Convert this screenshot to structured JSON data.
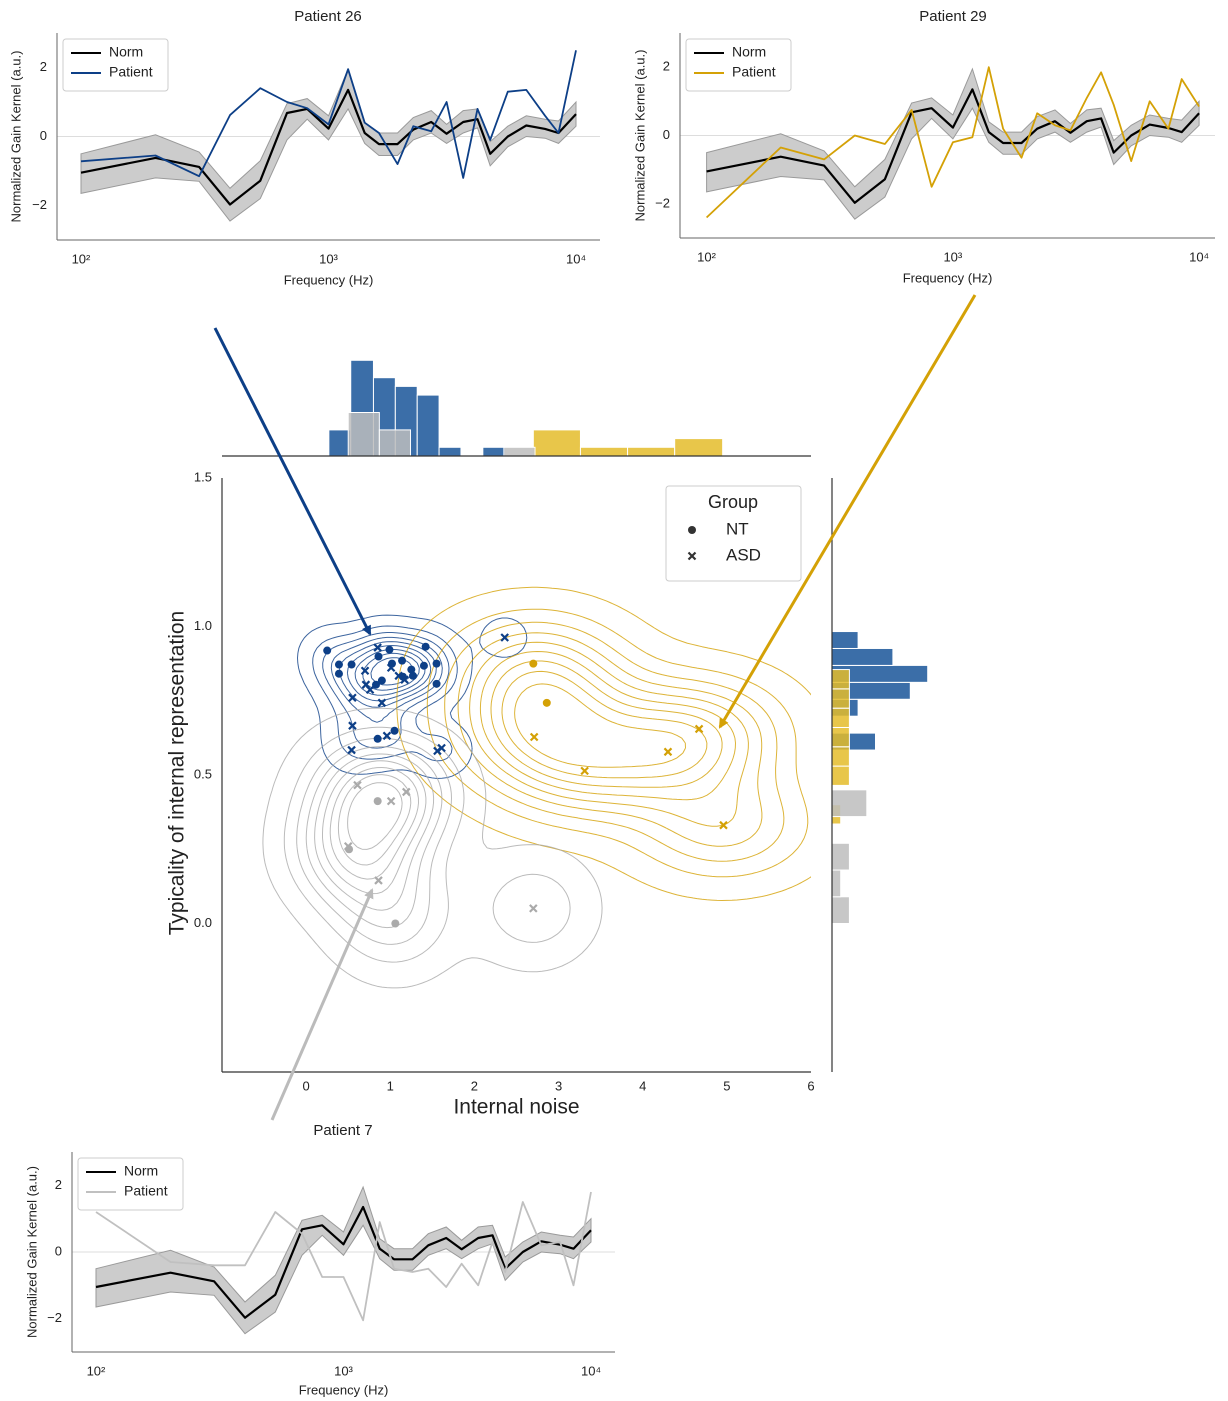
{
  "chart_data": [
    {
      "type": "line",
      "title": "Patient 26",
      "xlabel": "Frequency (Hz)",
      "ylabel": "Normalized Gain Kernel (a.u.)",
      "log_x": true,
      "xlim": [
        80,
        12500
      ],
      "ylim": [
        -3,
        3
      ],
      "xticks": [
        {
          "value": 100,
          "label": "10²"
        },
        {
          "value": 1000,
          "label": "10³"
        },
        {
          "value": 10000,
          "label": "10⁴"
        }
      ],
      "yticks": [
        {
          "value": -2,
          "label": "−2"
        },
        0,
        2
      ],
      "zero_line": true,
      "legend_position": "upper left",
      "x": [
        100,
        200,
        300,
        400,
        530,
        680,
        820,
        1000,
        1200,
        1400,
        1600,
        1900,
        2200,
        2600,
        3000,
        3500,
        4000,
        4500,
        5300,
        6300,
        7500,
        8500,
        10000
      ],
      "band": {
        "color": "#cccccc",
        "lower": [
          -1.65,
          -1.2,
          -1.3,
          -2.45,
          -1.8,
          -0.1,
          0.5,
          -0.1,
          0.8,
          -0.2,
          -0.55,
          -0.55,
          -0.1,
          0.1,
          -0.2,
          0.1,
          0.25,
          -0.85,
          -0.3,
          0.0,
          -0.05,
          -0.2,
          0.3
        ],
        "upper": [
          -0.5,
          0.05,
          -0.45,
          -1.5,
          -0.7,
          0.95,
          1.1,
          0.6,
          1.95,
          0.4,
          0.1,
          0.1,
          0.55,
          0.75,
          0.35,
          0.75,
          0.8,
          -0.15,
          0.3,
          0.6,
          0.5,
          0.45,
          1.0
        ]
      },
      "series": [
        {
          "name": "Norm",
          "color": "#000000",
          "values": [
            -1.05,
            -0.62,
            -0.88,
            -1.97,
            -1.28,
            0.68,
            0.8,
            0.23,
            1.35,
            0.1,
            -0.22,
            -0.22,
            0.2,
            0.42,
            0.08,
            0.42,
            0.5,
            -0.5,
            0.0,
            0.32,
            0.22,
            0.1,
            0.65
          ]
        },
        {
          "name": "Patient",
          "color": "#0d3f87",
          "values": [
            -0.72,
            -0.55,
            -1.15,
            0.62,
            1.4,
            1.0,
            0.82,
            0.35,
            1.95,
            0.4,
            0.1,
            -0.8,
            0.3,
            0.15,
            1.0,
            -1.2,
            0.8,
            -0.1,
            1.3,
            1.35,
            0.6,
            0.1,
            2.5
          ]
        }
      ]
    },
    {
      "type": "line",
      "title": "Patient 29",
      "xlabel": "Frequency (Hz)",
      "ylabel": "Normalized Gain Kernel (a.u.)",
      "log_x": true,
      "xlim": [
        78,
        11600
      ],
      "ylim": [
        -3,
        3
      ],
      "xticks": [
        {
          "value": 100,
          "label": "10²"
        },
        {
          "value": 1000,
          "label": "10³"
        },
        {
          "value": 10000,
          "label": "10⁴"
        }
      ],
      "yticks": [
        {
          "value": -2,
          "label": "−2"
        },
        0,
        2
      ],
      "zero_line": true,
      "legend_position": "upper left",
      "x": [
        100,
        200,
        300,
        400,
        530,
        680,
        820,
        1000,
        1200,
        1400,
        1600,
        1900,
        2200,
        2600,
        3000,
        3500,
        4000,
        4500,
        5300,
        6300,
        7500,
        8500,
        10000
      ],
      "band": {
        "color": "#cccccc",
        "lower": [
          -1.65,
          -1.2,
          -1.3,
          -2.45,
          -1.8,
          -0.1,
          0.5,
          -0.1,
          0.8,
          -0.2,
          -0.55,
          -0.55,
          -0.1,
          0.1,
          -0.2,
          0.1,
          0.25,
          -0.85,
          -0.3,
          0.0,
          -0.05,
          -0.2,
          0.3
        ],
        "upper": [
          -0.5,
          0.05,
          -0.45,
          -1.5,
          -0.7,
          0.95,
          1.1,
          0.6,
          1.95,
          0.4,
          0.1,
          0.1,
          0.55,
          0.75,
          0.35,
          0.75,
          0.8,
          -0.15,
          0.3,
          0.6,
          0.5,
          0.45,
          1.0
        ]
      },
      "series": [
        {
          "name": "Norm",
          "color": "#000000",
          "values": [
            -1.05,
            -0.62,
            -0.88,
            -1.97,
            -1.28,
            0.68,
            0.8,
            0.23,
            1.35,
            0.1,
            -0.22,
            -0.22,
            0.2,
            0.42,
            0.08,
            0.42,
            0.5,
            -0.5,
            0.0,
            0.32,
            0.22,
            0.1,
            0.65
          ]
        },
        {
          "name": "Patient",
          "color": "#d4a106",
          "values": [
            -2.4,
            -0.35,
            -0.7,
            0.0,
            -0.25,
            0.75,
            -1.5,
            -0.2,
            -0.05,
            2.0,
            0.2,
            -0.65,
            0.65,
            0.3,
            0.15,
            1.1,
            1.85,
            0.9,
            -0.75,
            1.0,
            0.2,
            1.65,
            0.85
          ]
        }
      ]
    },
    {
      "type": "scatter",
      "xlabel": "Internal noise",
      "ylabel": "Typicality of internal representation",
      "xlim": [
        -1,
        6
      ],
      "ylim": [
        -0.5,
        1.5
      ],
      "xticks": [
        0,
        1,
        2,
        3,
        4,
        5,
        6
      ],
      "yticks": [
        {
          "value": 0,
          "label": "0.0"
        },
        {
          "value": 0.5,
          "label": "0.5"
        },
        {
          "value": 1,
          "label": "1.0"
        },
        {
          "value": 1.5,
          "label": "1.5"
        }
      ],
      "legend_title": "Group",
      "legend_position": "upper right",
      "density_contours": true,
      "series": [
        {
          "name": "NT",
          "marker": "o",
          "x": [
            0.25,
            0.39,
            0.39,
            0.54,
            0.83,
            0.86,
            0.99,
            1.02,
            1.14,
            1.15,
            1.25,
            1.27,
            1.4,
            1.42,
            1.55,
            1.55,
            0.85,
            1.05,
            0.9,
            2.7,
            2.86,
            0.85,
            0.51,
            1.06
          ],
          "y": [
            0.919,
            0.872,
            0.841,
            0.872,
            0.804,
            0.899,
            0.922,
            0.875,
            0.885,
            0.831,
            0.855,
            0.834,
            0.868,
            0.932,
            0.875,
            0.807,
            0.622,
            0.649,
            0.818,
            0.875,
            0.743,
            0.412,
            0.25,
            0.0
          ],
          "colors": [
            "#0d3f87",
            "#0d3f87",
            "#0d3f87",
            "#0d3f87",
            "#0d3f87",
            "#0d3f87",
            "#0d3f87",
            "#0d3f87",
            "#0d3f87",
            "#0d3f87",
            "#0d3f87",
            "#0d3f87",
            "#0d3f87",
            "#0d3f87",
            "#0d3f87",
            "#0d3f87",
            "#0d3f87",
            "#0d3f87",
            "#0d3f87",
            "#d4a106",
            "#d4a106",
            "#aaaaaa",
            "#aaaaaa",
            "#aaaaaa"
          ]
        },
        {
          "name": "ASD",
          "marker": "x",
          "x": [
            0.85,
            0.71,
            0.76,
            0.55,
            0.9,
            1.17,
            1.1,
            1.01,
            0.55,
            0.54,
            0.96,
            1.56,
            1.61,
            2.36,
            0.7,
            2.71,
            3.31,
            4.3,
            4.67,
            4.96,
            0.61,
            1.01,
            1.19,
            0.5,
            0.86,
            2.7
          ],
          "y": [
            0.929,
            0.804,
            0.787,
            0.76,
            0.743,
            0.821,
            0.834,
            0.861,
            0.666,
            0.584,
            0.632,
            0.581,
            0.591,
            0.963,
            0.851,
            0.628,
            0.514,
            0.578,
            0.655,
            0.331,
            0.466,
            0.412,
            0.443,
            0.26,
            0.145,
            0.051
          ],
          "colors": [
            "#0d3f87",
            "#0d3f87",
            "#0d3f87",
            "#0d3f87",
            "#0d3f87",
            "#0d3f87",
            "#0d3f87",
            "#0d3f87",
            "#0d3f87",
            "#0d3f87",
            "#0d3f87",
            "#0d3f87",
            "#0d3f87",
            "#0d3f87",
            "#0d3f87",
            "#d4a106",
            "#d4a106",
            "#d4a106",
            "#d4a106",
            "#d4a106",
            "#aaaaaa",
            "#aaaaaa",
            "#aaaaaa",
            "#aaaaaa",
            "#aaaaaa",
            "#aaaaaa"
          ]
        }
      ],
      "marginal_x": [
        {
          "color": "#3b6ea8",
          "bins": [
            0.27,
            0.53,
            0.8,
            1.06,
            1.32,
            1.58,
            1.84,
            2.1,
            2.37
          ],
          "values": [
            3,
            11,
            9,
            8,
            7,
            1,
            0,
            1
          ]
        },
        {
          "color": "#e4bc2a",
          "bins": [
            2.7,
            3.26,
            3.82,
            4.38,
            4.95
          ],
          "values": [
            3,
            1,
            1,
            2
          ]
        },
        {
          "color": "#bdbdbd",
          "bins": [
            0.5,
            0.87,
            1.24,
            1.61,
            1.98,
            2.35,
            2.72
          ],
          "values": [
            5,
            3,
            0,
            0,
            0,
            1
          ]
        }
      ],
      "marginal_y": [
        {
          "color": "#3b6ea8",
          "bins": [
            0.584,
            0.641,
            0.698,
            0.755,
            0.812,
            0.869,
            0.926,
            0.983
          ],
          "values": [
            5,
            0,
            3,
            9,
            11,
            7,
            3
          ]
        },
        {
          "color": "#e4bc2a",
          "bins": [
            0.335,
            0.4,
            0.465,
            0.53,
            0.595,
            0.66,
            0.725,
            0.79,
            0.855
          ],
          "values": [
            1,
            0,
            2,
            2,
            2,
            2,
            2,
            2
          ]
        },
        {
          "color": "#bdbdbd",
          "bins": [
            0.0,
            0.09,
            0.18,
            0.27,
            0.36,
            0.45
          ],
          "values": [
            2,
            1,
            2,
            0,
            4
          ]
        }
      ]
    },
    {
      "type": "line",
      "title": "Patient 7",
      "xlabel": "Frequency (Hz)",
      "ylabel": "Normalized Gain Kernel (a.u.)",
      "log_x": true,
      "xlim": [
        80,
        12500
      ],
      "ylim": [
        -3,
        3
      ],
      "xticks": [
        {
          "value": 100,
          "label": "10²"
        },
        {
          "value": 1000,
          "label": "10³"
        },
        {
          "value": 10000,
          "label": "10⁴"
        }
      ],
      "yticks": [
        {
          "value": -2,
          "label": "−2"
        },
        0,
        2
      ],
      "zero_line": true,
      "legend_position": "upper left",
      "x": [
        100,
        200,
        300,
        400,
        530,
        680,
        820,
        1000,
        1200,
        1400,
        1600,
        1900,
        2200,
        2600,
        3000,
        3500,
        4000,
        4500,
        5300,
        6300,
        7500,
        8500,
        10000
      ],
      "band": {
        "color": "#cccccc",
        "lower": [
          -1.65,
          -1.2,
          -1.3,
          -2.45,
          -1.8,
          -0.1,
          0.5,
          -0.1,
          0.8,
          -0.2,
          -0.55,
          -0.55,
          -0.1,
          0.1,
          -0.2,
          0.1,
          0.25,
          -0.85,
          -0.3,
          0.0,
          -0.05,
          -0.2,
          0.3
        ],
        "upper": [
          -0.5,
          0.05,
          -0.45,
          -1.5,
          -0.7,
          0.95,
          1.1,
          0.6,
          1.95,
          0.4,
          0.1,
          0.1,
          0.55,
          0.75,
          0.35,
          0.75,
          0.8,
          -0.15,
          0.3,
          0.6,
          0.5,
          0.45,
          1.0
        ]
      },
      "series": [
        {
          "name": "Norm",
          "color": "#000000",
          "values": [
            -1.05,
            -0.62,
            -0.88,
            -1.97,
            -1.28,
            0.68,
            0.8,
            0.23,
            1.35,
            0.1,
            -0.22,
            -0.22,
            0.2,
            0.42,
            0.08,
            0.42,
            0.5,
            -0.5,
            0.0,
            0.32,
            0.22,
            0.1,
            0.65
          ]
        },
        {
          "name": "Patient",
          "color": "#c0c0c0",
          "values": [
            1.2,
            -0.3,
            -0.4,
            -0.4,
            1.2,
            0.55,
            -0.75,
            -0.75,
            -2.05,
            0.9,
            -0.5,
            -0.6,
            -0.5,
            -1.05,
            -0.35,
            -1.0,
            0.3,
            -0.6,
            1.5,
            0.2,
            0.3,
            -1.0,
            1.8
          ]
        }
      ]
    }
  ]
}
